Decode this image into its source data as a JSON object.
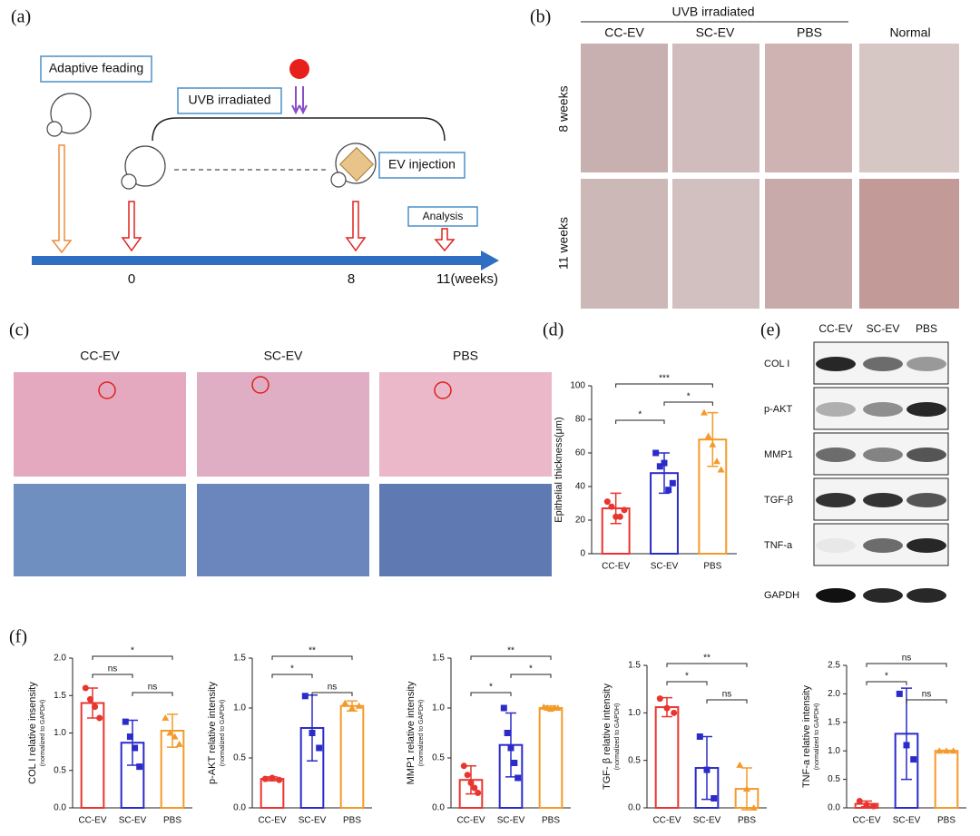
{
  "panels": {
    "a": "(a)",
    "b": "(b)",
    "c": "(c)",
    "d": "(d)",
    "e": "(e)",
    "f": "(f)"
  },
  "diagram": {
    "steps": [
      "Adaptive feading",
      "UVB irradiated",
      "EV injection",
      "Analysis"
    ],
    "timeline": [
      "0",
      "8",
      "11(weeks)"
    ]
  },
  "photos": {
    "group_label": "UVB irradiated",
    "columns": [
      "CC-EV",
      "SC-EV",
      "PBS",
      "Normal"
    ],
    "rows": [
      "8 weeks",
      "11 weeks"
    ]
  },
  "histology": {
    "columns": [
      "CC-EV",
      "SC-EV",
      "PBS"
    ]
  },
  "blot": {
    "columns": [
      "CC-EV",
      "SC-EV",
      "PBS"
    ],
    "rows": [
      "COL I",
      "p-AKT",
      "MMP1",
      "TGF-β",
      "TNF-a",
      "GAPDH"
    ]
  },
  "chart_data": [
    {
      "type": "bar",
      "ylabel": "Epithelial thickness(μm)",
      "categories": [
        "CC-EV",
        "SC-EV",
        "PBS"
      ],
      "colors": [
        "#e8352f",
        "#2b2bc9",
        "#f49a2a"
      ],
      "values": [
        27,
        48,
        68
      ],
      "errors": [
        9,
        12,
        16
      ],
      "points": [
        [
          31,
          28,
          22,
          22,
          26
        ],
        [
          60,
          52,
          54,
          38,
          42
        ],
        [
          84,
          70,
          65,
          55,
          50
        ]
      ],
      "ylim": [
        0,
        100
      ],
      "yticks": [
        0,
        20,
        40,
        60,
        80,
        100
      ],
      "significance": [
        {
          "pair": [
            "CC-EV",
            "PBS"
          ],
          "label": "***"
        },
        {
          "pair": [
            "SC-EV",
            "PBS"
          ],
          "label": "*"
        },
        {
          "pair": [
            "CC-EV",
            "SC-EV"
          ],
          "label": "*"
        }
      ]
    },
    {
      "type": "bar",
      "ylabel": "COL I relative insensity",
      "ylabel_note": "(normalized to GAPDH)",
      "categories": [
        "CC-EV",
        "SC-EV",
        "PBS"
      ],
      "colors": [
        "#e8352f",
        "#2b2bc9",
        "#f49a2a"
      ],
      "values": [
        1.4,
        0.87,
        1.03
      ],
      "errors": [
        0.2,
        0.3,
        0.22
      ],
      "points": [
        [
          1.6,
          1.45,
          1.35,
          1.2
        ],
        [
          1.15,
          0.95,
          0.8,
          0.55
        ],
        [
          1.2,
          1.0,
          0.95,
          0.85
        ]
      ],
      "ylim": [
        0,
        2
      ],
      "yticks": [
        {
          "value": 0,
          "label": "0.0"
        },
        0.5,
        {
          "value": 1,
          "label": "1.0"
        },
        1.5,
        {
          "value": 2,
          "label": "2.0"
        }
      ],
      "significance": [
        {
          "pair": [
            "CC-EV",
            "PBS"
          ],
          "label": "*"
        },
        {
          "pair": [
            "CC-EV",
            "SC-EV"
          ],
          "label": "ns"
        },
        {
          "pair": [
            "SC-EV",
            "PBS"
          ],
          "label": "ns"
        }
      ]
    },
    {
      "type": "bar",
      "ylabel": "p-AKT relative intensity",
      "ylabel_note": "(normalized to GAPDH)",
      "categories": [
        "CC-EV",
        "SC-EV",
        "PBS"
      ],
      "colors": [
        "#e8352f",
        "#2b2bc9",
        "#f49a2a"
      ],
      "values": [
        0.29,
        0.8,
        1.02
      ],
      "errors": [
        0.02,
        0.33,
        0.05
      ],
      "points": [
        [
          0.29,
          0.3,
          0.28
        ],
        [
          1.12,
          0.75,
          0.6
        ],
        [
          1.05,
          1.0,
          1.02
        ]
      ],
      "ylim": [
        0,
        1.5
      ],
      "yticks": [
        {
          "value": 0,
          "label": "0.0"
        },
        0.5,
        {
          "value": 1,
          "label": "1.0"
        },
        1.5
      ],
      "significance": [
        {
          "pair": [
            "CC-EV",
            "PBS"
          ],
          "label": "**"
        },
        {
          "pair": [
            "CC-EV",
            "SC-EV"
          ],
          "label": "*"
        },
        {
          "pair": [
            "SC-EV",
            "PBS"
          ],
          "label": "ns"
        }
      ]
    },
    {
      "type": "bar",
      "ylabel": "MMP1 relative intensity",
      "ylabel_note": "(normalized to GAPDH)",
      "categories": [
        "CC-EV",
        "SC-EV",
        "PBS"
      ],
      "colors": [
        "#e8352f",
        "#2b2bc9",
        "#f49a2a"
      ],
      "values": [
        0.28,
        0.63,
        1.0
      ],
      "errors": [
        0.14,
        0.32,
        0.02
      ],
      "points": [
        [
          0.42,
          0.33,
          0.25,
          0.2,
          0.15
        ],
        [
          1.0,
          0.75,
          0.6,
          0.45,
          0.3
        ],
        [
          1.01,
          1.0,
          0.99,
          1.0,
          1.0
        ]
      ],
      "ylim": [
        0,
        1.5
      ],
      "yticks": [
        {
          "value": 0,
          "label": "0.0"
        },
        0.5,
        {
          "value": 1,
          "label": "1.0"
        },
        1.5
      ],
      "significance": [
        {
          "pair": [
            "CC-EV",
            "PBS"
          ],
          "label": "**"
        },
        {
          "pair": [
            "SC-EV",
            "PBS"
          ],
          "label": "*"
        },
        {
          "pair": [
            "CC-EV",
            "SC-EV"
          ],
          "label": "*"
        }
      ]
    },
    {
      "type": "bar",
      "ylabel": "TGF- β relative intensity",
      "ylabel_note": "(normalized to GAPDH)",
      "categories": [
        "CC-EV",
        "SC-EV",
        "PBS"
      ],
      "colors": [
        "#e8352f",
        "#2b2bc9",
        "#f49a2a"
      ],
      "values": [
        1.06,
        0.42,
        0.2
      ],
      "errors": [
        0.1,
        0.33,
        0.22
      ],
      "points": [
        [
          1.15,
          1.05,
          1.0
        ],
        [
          0.75,
          0.4,
          0.1
        ],
        [
          0.45,
          0.2,
          0.0
        ]
      ],
      "ylim": [
        0,
        1.5
      ],
      "yticks": [
        {
          "value": 0,
          "label": "0.0"
        },
        0.5,
        {
          "value": 1,
          "label": "1.0"
        },
        1.5
      ],
      "significance": [
        {
          "pair": [
            "CC-EV",
            "PBS"
          ],
          "label": "**"
        },
        {
          "pair": [
            "CC-EV",
            "SC-EV"
          ],
          "label": "*"
        },
        {
          "pair": [
            "SC-EV",
            "PBS"
          ],
          "label": "ns"
        }
      ]
    },
    {
      "type": "bar",
      "ylabel": "TNF-a relative intensity",
      "ylabel_note": "(normalized to GAPDH)",
      "categories": [
        "CC-EV",
        "SC-EV",
        "PBS"
      ],
      "colors": [
        "#e8352f",
        "#2b2bc9",
        "#f49a2a"
      ],
      "values": [
        0.07,
        1.3,
        1.0
      ],
      "errors": [
        0.05,
        0.8,
        0.01
      ],
      "points": [
        [
          0.12,
          0.05,
          0.03
        ],
        [
          2.0,
          1.1,
          0.85
        ],
        [
          1.0,
          1.0,
          1.0
        ]
      ],
      "ylim": [
        0,
        2.5
      ],
      "yticks": [
        {
          "value": 0,
          "label": "0.0"
        },
        0.5,
        {
          "value": 1,
          "label": "1.0"
        },
        1.5,
        {
          "value": 2,
          "label": "2.0"
        },
        2.5
      ],
      "significance": [
        {
          "pair": [
            "CC-EV",
            "PBS"
          ],
          "label": "ns"
        },
        {
          "pair": [
            "CC-EV",
            "SC-EV"
          ],
          "label": "*"
        },
        {
          "pair": [
            "SC-EV",
            "PBS"
          ],
          "label": "ns"
        }
      ]
    }
  ]
}
